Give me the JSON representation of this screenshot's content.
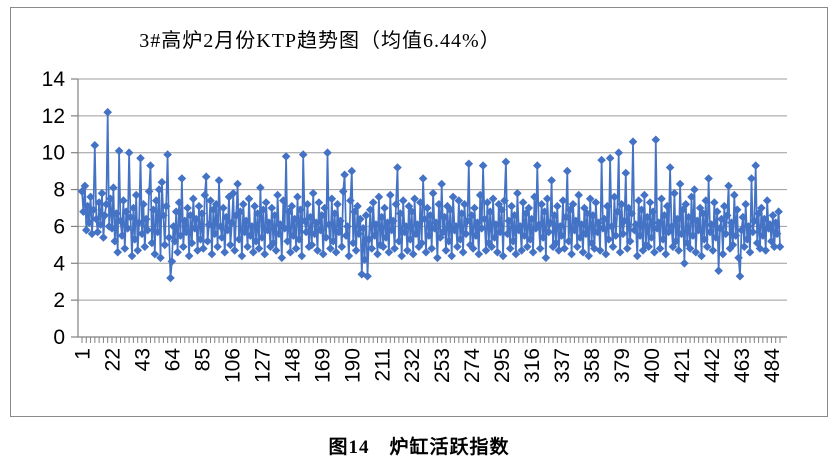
{
  "chart_data": {
    "type": "line",
    "title": "3#高炉2月份KTP趋势图（均值6.44%）",
    "caption": "图14　炉缸活跃指数",
    "series_name": "KTP",
    "mean": 6.44,
    "ylim": [
      0,
      14
    ],
    "y_ticks": [
      0,
      2,
      4,
      6,
      8,
      10,
      12,
      14
    ],
    "x_tick_labels": [
      "1",
      "22",
      "43",
      "64",
      "85",
      "106",
      "127",
      "148",
      "169",
      "190",
      "211",
      "232",
      "253",
      "274",
      "295",
      "316",
      "337",
      "358",
      "379",
      "400",
      "421",
      "442",
      "463",
      "484"
    ],
    "x_tick_interval": 21,
    "x_minor_tick_interval": 3,
    "n_points": 490,
    "grid": "horizontal-only",
    "legend": "none",
    "marker": "diamond",
    "colors": {
      "series": "#4472C4",
      "gridline": "#9c9c9c",
      "axis": "#808080",
      "border": "#8a8a8a",
      "text": "#000000"
    },
    "values": [
      7.9,
      6.8,
      8.2,
      5.8,
      7.1,
      6.2,
      7.6,
      5.6,
      6.9,
      10.4,
      6.4,
      5.7,
      7.3,
      6.1,
      7.8,
      5.4,
      6.6,
      7.2,
      12.2,
      6.0,
      7.5,
      5.9,
      8.1,
      5.2,
      6.7,
      4.6,
      10.1,
      6.3,
      5.5,
      7.4,
      4.8,
      6.8,
      5.9,
      10.0,
      6.5,
      4.4,
      7.0,
      5.3,
      7.7,
      4.7,
      6.2,
      9.7,
      5.6,
      7.2,
      4.9,
      6.4,
      5.8,
      7.9,
      9.3,
      5.1,
      6.9,
      4.5,
      7.4,
      5.7,
      8.0,
      4.3,
      8.4,
      6.6,
      5.0,
      7.1,
      9.9,
      5.4,
      3.2,
      4.1,
      6.0,
      5.2,
      6.8,
      4.6,
      7.3,
      5.5,
      8.6,
      4.9,
      6.3,
      5.7,
      7.0,
      4.4,
      6.6,
      5.1,
      7.5,
      5.9,
      6.4,
      4.7,
      7.1,
      5.3,
      6.7,
      4.8,
      7.7,
      8.7,
      5.2,
      6.1,
      7.4,
      4.5,
      6.9,
      5.6,
      7.2,
      4.9,
      8.5,
      6.0,
      5.4,
      7.0,
      4.6,
      6.5,
      5.8,
      7.6,
      5.0,
      6.2,
      7.8,
      4.7,
      6.6,
      8.3,
      5.3,
      6.8,
      4.4,
      7.2,
      5.7,
      6.3,
      4.9,
      7.5,
      5.5,
      6.0,
      4.6,
      7.1,
      5.2,
      6.7,
      4.8,
      8.1,
      5.4,
      6.9,
      4.5,
      7.3,
      5.8,
      6.2,
      4.9,
      7.0,
      5.1,
      6.6,
      4.7,
      7.7,
      5.6,
      6.1,
      4.3,
      7.4,
      5.9,
      9.8,
      5.2,
      6.8,
      4.6,
      7.1,
      5.5,
      6.4,
      4.8,
      7.6,
      5.3,
      6.9,
      4.4,
      9.9,
      6.3,
      5.7,
      7.2,
      4.9,
      6.5,
      5.0,
      7.8,
      5.6,
      6.2,
      4.7,
      7.3,
      5.8,
      6.6,
      4.5,
      7.0,
      5.4,
      10.0,
      6.1,
      4.8,
      7.5,
      5.2,
      6.7,
      4.6,
      7.2,
      5.7,
      6.3,
      4.9,
      7.9,
      8.8,
      5.5,
      6.0,
      4.4,
      7.4,
      9.0,
      5.1,
      6.8,
      4.7,
      7.1,
      5.6,
      6.4,
      3.4,
      5.9,
      4.2,
      6.6,
      3.3,
      5.3,
      6.9,
      4.8,
      7.3,
      5.5,
      6.1,
      4.5,
      7.6,
      5.0,
      6.5,
      4.9,
      7.0,
      5.4,
      6.2,
      4.6,
      7.7,
      5.8,
      6.3,
      4.8,
      7.2,
      9.2,
      5.2,
      6.7,
      4.4,
      7.4,
      5.7,
      6.0,
      4.7,
      7.1,
      5.3,
      6.8,
      4.5,
      7.5,
      5.6,
      6.1,
      4.9,
      7.3,
      5.1,
      8.6,
      6.4,
      4.6,
      7.0,
      5.5,
      6.6,
      4.8,
      7.8,
      5.9,
      6.2,
      4.3,
      7.2,
      5.4,
      8.3,
      5.7,
      6.5,
      4.7,
      7.1,
      5.2,
      6.9,
      4.4,
      7.6,
      5.8,
      6.0,
      4.9,
      7.4,
      5.3,
      6.7,
      4.6,
      7.2,
      5.6,
      6.3,
      9.4,
      5.0,
      6.6,
      4.8,
      7.0,
      5.5,
      6.2,
      4.5,
      7.7,
      5.9,
      9.3,
      6.4,
      4.7,
      7.3,
      5.1,
      6.8,
      4.9,
      7.5,
      5.4,
      6.1,
      4.6,
      7.2,
      5.7,
      6.9,
      4.4,
      7.4,
      9.5,
      5.6,
      6.3,
      4.8,
      7.1,
      5.2,
      6.6,
      4.5,
      7.8,
      5.8,
      6.0,
      4.7,
      7.3,
      5.5,
      6.7,
      4.9,
      7.0,
      5.3,
      6.4,
      4.6,
      7.6,
      5.9,
      9.3,
      6.1,
      4.8,
      7.2,
      5.4,
      6.8,
      4.3,
      7.5,
      5.7,
      6.2,
      8.5,
      4.9,
      6.6,
      5.1,
      7.1,
      4.7,
      6.0,
      5.5,
      7.4,
      4.8,
      6.5,
      9.0,
      5.2,
      6.9,
      4.5,
      7.2,
      5.8,
      6.3,
      4.9,
      7.7,
      5.4,
      6.1,
      4.6,
      7.0,
      5.6,
      6.7,
      4.4,
      7.5,
      5.1,
      6.6,
      4.8,
      7.3,
      5.7,
      6.2,
      4.7,
      9.6,
      5.9,
      6.4,
      4.5,
      7.1,
      5.3,
      9.7,
      6.0,
      4.9,
      7.6,
      5.5,
      6.8,
      10.0,
      4.6,
      7.2,
      5.6,
      6.3,
      8.9,
      4.8,
      7.0,
      5.2,
      6.7,
      10.6,
      5.8,
      6.1,
      4.4,
      7.4,
      5.5,
      6.9,
      4.7,
      7.7,
      5.0,
      6.5,
      4.9,
      7.3,
      5.4,
      6.8,
      4.6,
      10.7,
      5.9,
      6.2,
      4.8,
      7.5,
      5.3,
      6.6,
      4.5,
      7.1,
      5.7,
      9.2,
      6.0,
      4.9,
      7.8,
      5.2,
      6.4,
      4.7,
      8.3,
      5.6,
      6.9,
      4.0,
      7.2,
      5.1,
      6.5,
      4.8,
      7.6,
      5.5,
      8.0,
      4.6,
      6.3,
      5.8,
      7.0,
      4.4,
      6.7,
      5.3,
      7.4,
      4.9,
      8.6,
      5.7,
      6.1,
      4.7,
      7.3,
      5.4,
      6.8,
      3.6,
      5.9,
      6.4,
      4.5,
      7.1,
      5.6,
      6.6,
      8.2,
      4.8,
      6.2,
      5.0,
      7.7,
      5.5,
      6.9,
      4.3,
      3.3,
      5.8,
      6.5,
      4.9,
      7.2,
      5.3,
      6.0,
      4.6,
      8.6,
      5.7,
      6.3,
      9.3,
      5.1,
      6.7,
      4.8,
      7.0,
      5.5,
      6.4,
      4.7,
      7.4,
      5.9,
      6.1,
      5.2,
      6.6,
      4.9,
      6.2,
      5.6,
      6.8,
      4.9
    ]
  }
}
